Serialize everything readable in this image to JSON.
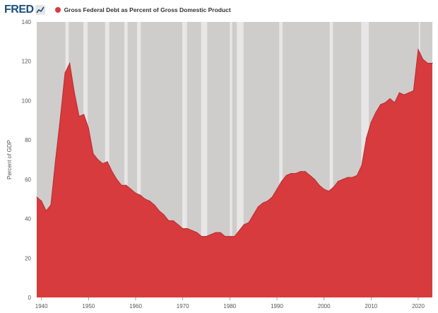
{
  "header": {
    "logo_text": "FRED"
  },
  "colors": {
    "series": "#d83b3d",
    "series_stroke": "#b72c2e",
    "plot_background": "#cfcccc",
    "recession": "#e8e6e6",
    "logo": "#1a4f7c"
  },
  "chart_data": {
    "type": "area",
    "title": "",
    "xlabel": "",
    "ylabel": "Percent of GDP",
    "ylim": [
      0,
      140
    ],
    "xlim": [
      1939,
      2023
    ],
    "y_ticks": [
      "0",
      "20",
      "40",
      "60",
      "80",
      "100",
      "120",
      "140"
    ],
    "x_ticks": [
      "1940",
      "1950",
      "1960",
      "1970",
      "1980",
      "1990",
      "2000",
      "2010",
      "2020"
    ],
    "grid": false,
    "legend_position": "top-left",
    "series": [
      {
        "name": "Gross Federal Debt as Percent of Gross Domestic Product",
        "x": [
          1939,
          1940,
          1941,
          1942,
          1943,
          1944,
          1945,
          1946,
          1947,
          1948,
          1949,
          1950,
          1951,
          1952,
          1953,
          1954,
          1955,
          1956,
          1957,
          1958,
          1959,
          1960,
          1961,
          1962,
          1963,
          1964,
          1965,
          1966,
          1967,
          1968,
          1969,
          1970,
          1971,
          1972,
          1973,
          1974,
          1975,
          1976,
          1977,
          1978,
          1979,
          1980,
          1981,
          1982,
          1983,
          1984,
          1985,
          1986,
          1987,
          1988,
          1989,
          1990,
          1991,
          1992,
          1993,
          1994,
          1995,
          1996,
          1997,
          1998,
          1999,
          2000,
          2001,
          2002,
          2003,
          2004,
          2005,
          2006,
          2007,
          2008,
          2009,
          2010,
          2011,
          2012,
          2013,
          2014,
          2015,
          2016,
          2017,
          2018,
          2019,
          2020,
          2021,
          2022,
          2023
        ],
        "values": [
          51,
          49,
          44,
          47,
          70,
          91,
          114,
          119,
          104,
          92,
          93,
          86,
          73,
          70,
          68,
          69,
          64,
          60,
          57,
          57,
          55,
          53,
          52,
          50,
          49,
          47,
          44,
          42,
          39,
          39,
          37,
          35,
          35,
          34,
          33,
          31,
          31,
          32,
          33,
          33,
          31,
          31,
          31,
          34,
          37,
          38,
          42,
          46,
          48,
          49,
          51,
          55,
          59,
          62,
          63,
          63,
          64,
          64,
          62,
          60,
          57,
          55,
          54,
          56,
          59,
          60,
          61,
          61,
          62,
          67,
          81,
          89,
          94,
          98,
          99,
          101,
          99,
          104,
          103,
          104,
          105,
          126,
          121,
          119,
          119
        ]
      }
    ],
    "recessions": [
      [
        1945.1,
        1945.8
      ],
      [
        1948.9,
        1949.8
      ],
      [
        1953.5,
        1954.4
      ],
      [
        1957.6,
        1958.3
      ],
      [
        1960.3,
        1961.1
      ],
      [
        1969.9,
        1970.9
      ],
      [
        1973.9,
        1975.2
      ],
      [
        1980.0,
        1980.5
      ],
      [
        1981.5,
        1982.9
      ],
      [
        1990.5,
        1991.2
      ],
      [
        2001.2,
        2001.9
      ],
      [
        2007.9,
        2009.5
      ],
      [
        2020.1,
        2020.4
      ]
    ]
  }
}
